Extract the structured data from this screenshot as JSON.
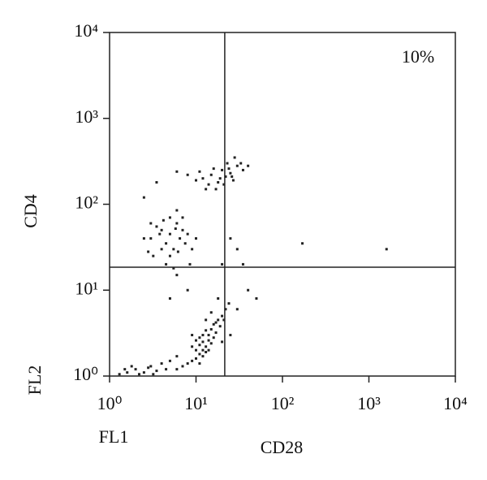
{
  "chart_data": {
    "type": "scatter",
    "log_scale": true,
    "color": "#222222",
    "x_label": "CD28",
    "y_label": "CD4",
    "x_channel": "FL1",
    "y_channel": "FL2",
    "annotation": "10%",
    "quadrant_x": 21.5,
    "quadrant_y": 18.5,
    "xlim": [
      1,
      10000
    ],
    "ylim": [
      1,
      10000
    ],
    "xticks": [
      {
        "value": 1,
        "label": "10⁰"
      },
      {
        "value": 10,
        "label": "10¹"
      },
      {
        "value": 100,
        "label": "10²"
      },
      {
        "value": 1000,
        "label": "10³"
      },
      {
        "value": 10000,
        "label": "10⁴"
      }
    ],
    "yticks": [
      {
        "value": 1,
        "label": "10⁰"
      },
      {
        "value": 10,
        "label": "10¹"
      },
      {
        "value": 100,
        "label": "10²"
      },
      {
        "value": 1000,
        "label": "10³"
      },
      {
        "value": 10000,
        "label": "10⁴"
      }
    ],
    "x": [
      10,
      12,
      14,
      11,
      13,
      15,
      9,
      12,
      16,
      18,
      11,
      13,
      14,
      10,
      17,
      20,
      19,
      12,
      15,
      9,
      8,
      13,
      16,
      11,
      14,
      12,
      10,
      17,
      22,
      21,
      24,
      18,
      15,
      7,
      6,
      25,
      9,
      20,
      13,
      11,
      1.3,
      1.6,
      2,
      2.5,
      3,
      3.5,
      2.2,
      4,
      5,
      1.8,
      2.8,
      4.5,
      3.2,
      6,
      1.5,
      3,
      4,
      5,
      6,
      4.5,
      5.5,
      3.5,
      7,
      6.5,
      5,
      4,
      2.5,
      3,
      6,
      7,
      8,
      5,
      4.5,
      5.5,
      3.8,
      6.2,
      2.8,
      7.5,
      8.5,
      4.2,
      9,
      10,
      6,
      3.2,
      5.8,
      12,
      15,
      18,
      20,
      22,
      25,
      14,
      16,
      19,
      23,
      27,
      30,
      10,
      8,
      17,
      21,
      28,
      35,
      11,
      13,
      24,
      26,
      33,
      6,
      40,
      2.5,
      3.5,
      30,
      35,
      25,
      40,
      50,
      30,
      20,
      8,
      5,
      170,
      1600
    ],
    "values": [
      2,
      2.5,
      3,
      1.8,
      2.2,
      3.5,
      1.5,
      3,
      4,
      4.5,
      2.8,
      1.9,
      2.6,
      1.6,
      3.2,
      5,
      3.8,
      2,
      2.4,
      2.2,
      1.4,
      3.4,
      2.8,
      2.3,
      2,
      1.7,
      2.6,
      4.2,
      6,
      4.5,
      7,
      8,
      5.5,
      1.3,
      1.2,
      3,
      3,
      2.5,
      4.5,
      1.4,
      1.05,
      1.1,
      1.2,
      1.1,
      1.3,
      1.15,
      1.05,
      1.4,
      1.5,
      1.3,
      1.25,
      1.2,
      1.05,
      1.7,
      1.2,
      40,
      50,
      45,
      60,
      35,
      30,
      55,
      70,
      40,
      25,
      30,
      40,
      60,
      85,
      50,
      45,
      70,
      20,
      18,
      45,
      28,
      28,
      35,
      20,
      65,
      30,
      40,
      15,
      25,
      52,
      200,
      220,
      180,
      250,
      210,
      230,
      170,
      260,
      200,
      300,
      190,
      280,
      190,
      220,
      150,
      170,
      350,
      250,
      240,
      150,
      260,
      210,
      300,
      240,
      280,
      120,
      180,
      30,
      20,
      40,
      10,
      8,
      6,
      20,
      10,
      8,
      35,
      30
    ]
  }
}
